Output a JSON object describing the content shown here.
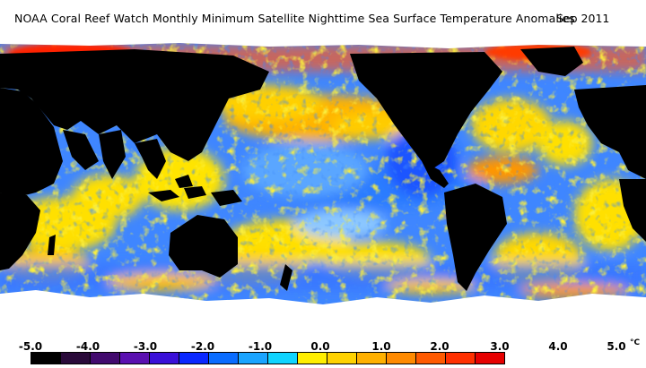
{
  "header": {
    "title": "NOAA Coral Reef Watch Monthly Minimum Satellite Nighttime Sea Surface Temperature Anomalies",
    "date": "Sep 2011"
  },
  "map": {
    "variable": "Monthly minimum nighttime SST anomaly",
    "projection": "equirectangular global",
    "land_color": "#000000",
    "no_data_color": "#ffffff"
  },
  "legend": {
    "unit": "°C",
    "ticks": [
      "-5.0",
      "-4.0",
      "-3.0",
      "-2.0",
      "-1.0",
      "0.0",
      "1.0",
      "2.0",
      "3.0",
      "4.0",
      "5.0"
    ],
    "colors": [
      "#000000",
      "#2a0a3a",
      "#420a6e",
      "#5a10b0",
      "#3a10d8",
      "#0a28ff",
      "#0a6cff",
      "#1aa4ff",
      "#10d4ff",
      "#ffee00",
      "#ffd200",
      "#ffb000",
      "#ff8a00",
      "#ff5a00",
      "#ff3000",
      "#e60000"
    ]
  }
}
